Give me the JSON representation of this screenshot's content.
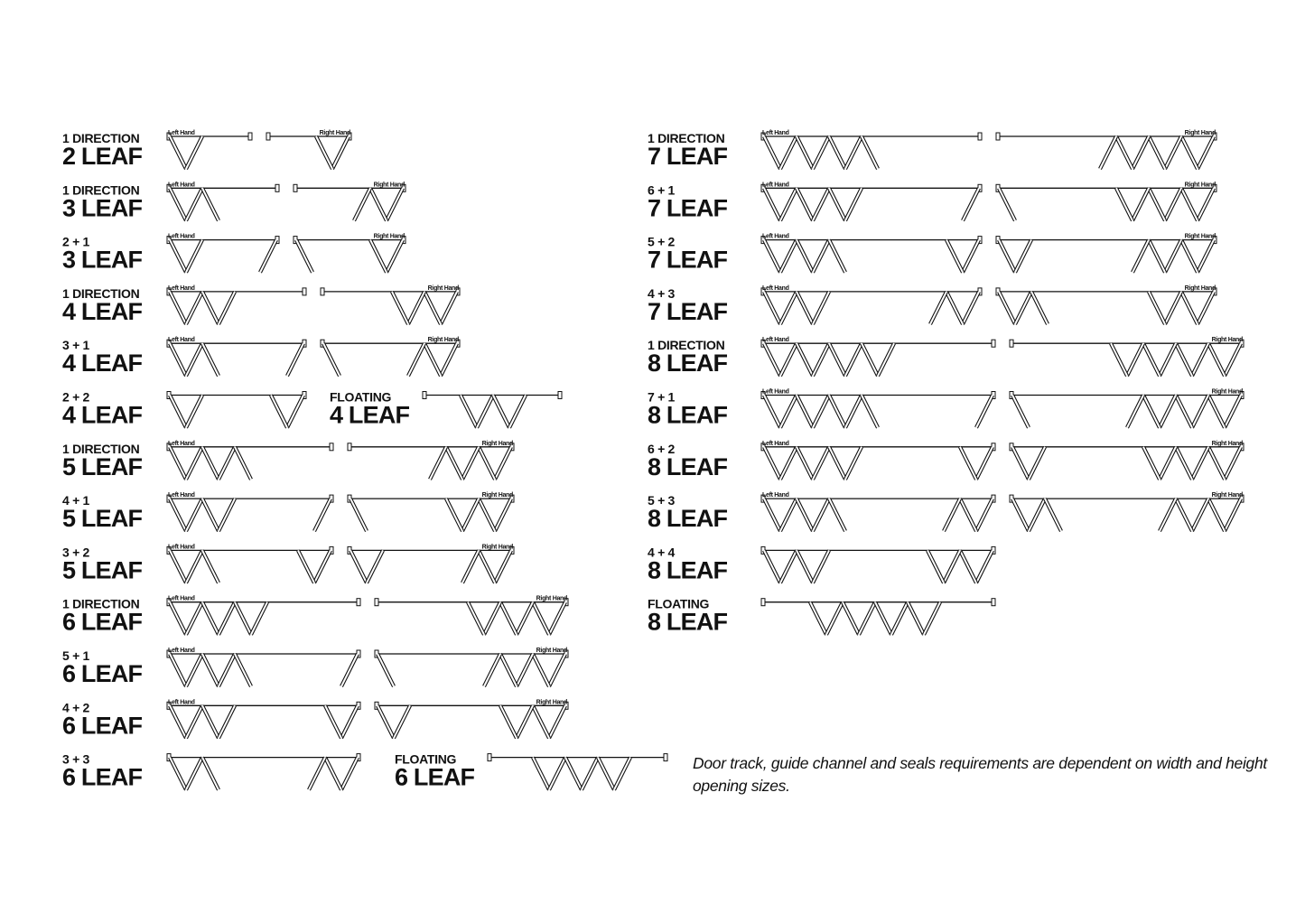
{
  "colors": {
    "ink": "#111111",
    "paper": "#ffffff"
  },
  "hand_labels": {
    "left": "Left Hand",
    "right": "Right Hand"
  },
  "columns": [
    {
      "rows": [
        {
          "title_top": "1 DIRECTION",
          "title_bottom": "2 LEAF",
          "diagrams": [
            {
              "hand": "left",
              "left": 2,
              "right": 0
            },
            {
              "hand": "right",
              "left": 0,
              "right": 2
            }
          ]
        },
        {
          "title_top": "1 DIRECTION",
          "title_bottom": "3 LEAF",
          "diagrams": [
            {
              "hand": "left",
              "left": 3,
              "right": 0
            },
            {
              "hand": "right",
              "left": 0,
              "right": 3
            }
          ]
        },
        {
          "title_top": "2 + 1",
          "title_bottom": "3 LEAF",
          "diagrams": [
            {
              "hand": "left",
              "left": 2,
              "right": 1
            },
            {
              "hand": "right",
              "left": 1,
              "right": 2
            }
          ]
        },
        {
          "title_top": "1 DIRECTION",
          "title_bottom": "4 LEAF",
          "diagrams": [
            {
              "hand": "left",
              "left": 4,
              "right": 0
            },
            {
              "hand": "right",
              "left": 0,
              "right": 4
            }
          ]
        },
        {
          "title_top": "3 + 1",
          "title_bottom": "4 LEAF",
          "diagrams": [
            {
              "hand": "left",
              "left": 3,
              "right": 1
            },
            {
              "hand": "right",
              "left": 1,
              "right": 3
            }
          ]
        },
        {
          "title_top": "2 + 2",
          "title_bottom": "4 LEAF",
          "diagrams": [
            {
              "hand": "",
              "left": 2,
              "right": 2
            },
            {
              "floating": 4,
              "title_top": "FLOATING",
              "title_bottom": "4 LEAF"
            }
          ]
        },
        {
          "title_top": "1 DIRECTION",
          "title_bottom": "5 LEAF",
          "diagrams": [
            {
              "hand": "left",
              "left": 5,
              "right": 0
            },
            {
              "hand": "right",
              "left": 0,
              "right": 5
            }
          ]
        },
        {
          "title_top": "4 + 1",
          "title_bottom": "5 LEAF",
          "diagrams": [
            {
              "hand": "left",
              "left": 4,
              "right": 1
            },
            {
              "hand": "right",
              "left": 1,
              "right": 4
            }
          ]
        },
        {
          "title_top": "3 + 2",
          "title_bottom": "5 LEAF",
          "diagrams": [
            {
              "hand": "left",
              "left": 3,
              "right": 2
            },
            {
              "hand": "right",
              "left": 2,
              "right": 3
            }
          ]
        },
        {
          "title_top": "1 DIRECTION",
          "title_bottom": "6 LEAF",
          "diagrams": [
            {
              "hand": "left",
              "left": 6,
              "right": 0
            },
            {
              "hand": "right",
              "left": 0,
              "right": 6
            }
          ]
        },
        {
          "title_top": "5 + 1",
          "title_bottom": "6 LEAF",
          "diagrams": [
            {
              "hand": "left",
              "left": 5,
              "right": 1
            },
            {
              "hand": "right",
              "left": 1,
              "right": 5
            }
          ]
        },
        {
          "title_top": "4 + 2",
          "title_bottom": "6 LEAF",
          "diagrams": [
            {
              "hand": "left",
              "left": 4,
              "right": 2
            },
            {
              "hand": "right",
              "left": 2,
              "right": 4
            }
          ]
        },
        {
          "title_top": "3 + 3",
          "title_bottom": "6 LEAF",
          "diagrams": [
            {
              "hand": "",
              "left": 3,
              "right": 3
            },
            {
              "floating": 6,
              "title_top": "FLOATING",
              "title_bottom": "6 LEAF"
            }
          ]
        }
      ]
    },
    {
      "rows": [
        {
          "title_top": "1 DIRECTION",
          "title_bottom": "7 LEAF",
          "diagrams": [
            {
              "hand": "left",
              "left": 7,
              "right": 0
            },
            {
              "hand": "right",
              "left": 0,
              "right": 7
            }
          ]
        },
        {
          "title_top": "6 + 1",
          "title_bottom": "7 LEAF",
          "diagrams": [
            {
              "hand": "left",
              "left": 6,
              "right": 1
            },
            {
              "hand": "right",
              "left": 1,
              "right": 6
            }
          ]
        },
        {
          "title_top": "5 + 2",
          "title_bottom": "7 LEAF",
          "diagrams": [
            {
              "hand": "left",
              "left": 5,
              "right": 2
            },
            {
              "hand": "right",
              "left": 2,
              "right": 5
            }
          ]
        },
        {
          "title_top": "4 + 3",
          "title_bottom": "7 LEAF",
          "diagrams": [
            {
              "hand": "left",
              "left": 4,
              "right": 3
            },
            {
              "hand": "right",
              "left": 3,
              "right": 4
            }
          ]
        },
        {
          "title_top": "1 DIRECTION",
          "title_bottom": "8 LEAF",
          "diagrams": [
            {
              "hand": "left",
              "left": 8,
              "right": 0
            },
            {
              "hand": "right",
              "left": 0,
              "right": 8
            }
          ]
        },
        {
          "title_top": "7 + 1",
          "title_bottom": "8 LEAF",
          "diagrams": [
            {
              "hand": "left",
              "left": 7,
              "right": 1
            },
            {
              "hand": "right",
              "left": 1,
              "right": 7
            }
          ]
        },
        {
          "title_top": "6 + 2",
          "title_bottom": "8 LEAF",
          "diagrams": [
            {
              "hand": "left",
              "left": 6,
              "right": 2
            },
            {
              "hand": "right",
              "left": 2,
              "right": 6
            }
          ]
        },
        {
          "title_top": "5 + 3",
          "title_bottom": "8 LEAF",
          "diagrams": [
            {
              "hand": "left",
              "left": 5,
              "right": 3
            },
            {
              "hand": "right",
              "left": 3,
              "right": 5
            }
          ]
        },
        {
          "title_top": "4 + 4",
          "title_bottom": "8 LEAF",
          "diagrams": [
            {
              "hand": "",
              "left": 4,
              "right": 4
            }
          ]
        },
        {
          "title_top": "FLOATING",
          "title_bottom": "8 LEAF",
          "diagrams": [
            {
              "floating": 8
            }
          ]
        }
      ]
    }
  ],
  "note": "Door track, guide channel and seals requirements are dependent on width and height opening sizes."
}
